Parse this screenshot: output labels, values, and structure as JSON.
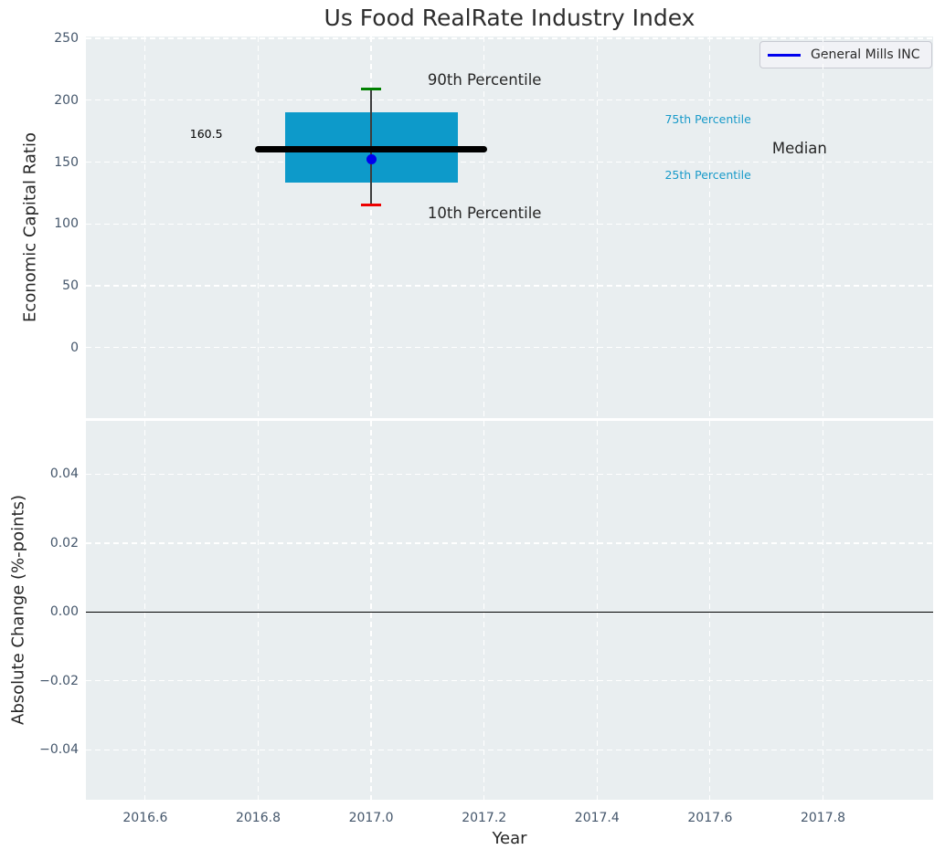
{
  "chart_data": [
    {
      "type": "boxplot",
      "title": "Us Food RealRate Industry Index",
      "ylabel": "Economic Capital Ratio",
      "xlim": [
        2016.495,
        2017.995
      ],
      "ylim": [
        -57,
        251.5
      ],
      "grid": true,
      "yticks": [
        250,
        200,
        150,
        100,
        50,
        0
      ],
      "ytick_labels": [
        "250",
        "200",
        "150",
        "100",
        "50",
        "0"
      ],
      "xticks": [
        2016.6,
        2016.8,
        2017.0,
        2017.2,
        2017.4,
        2017.6,
        2017.8
      ],
      "xtick_labels": [
        "2016.6",
        "2016.8",
        "2017.0",
        "2017.2",
        "2017.4",
        "2017.6",
        "2017.8"
      ],
      "legend": {
        "label": "General Mills INC",
        "line_color": "#0000ee",
        "position": "upper right"
      },
      "box": {
        "x": 2017.0,
        "p90": 209,
        "p75": 190,
        "median": 160.5,
        "p25": 133.5,
        "p10": 115,
        "box_halfwidth_years": 0.153,
        "median_halfwidth_years": 0.206,
        "cap_halfwidth_years": 0.018,
        "colors": {
          "box_fill": "#0d9aca",
          "median_line": "#000000",
          "p90_cap": "#008000",
          "p10_cap": "#ed0000",
          "whisker": "#3d3d3d"
        }
      },
      "company_point": {
        "label": "General Mills INC",
        "x": 2017.0,
        "y": 152,
        "color": "#0000ee"
      },
      "median_value_label": "160.5",
      "annotations": [
        {
          "id": "90th-percentile",
          "text": "90th Percentile",
          "x": 2017.1,
          "y": 216,
          "color": "#262626",
          "size": "large",
          "align": "left"
        },
        {
          "id": "10th-percentile",
          "text": "10th Percentile",
          "x": 2017.1,
          "y": 108,
          "color": "#262626",
          "size": "large",
          "align": "left"
        },
        {
          "id": "75th-percentile",
          "text": "75th Percentile",
          "x": 2017.52,
          "y": 184,
          "color": "#189ac9",
          "size": "small",
          "align": "left"
        },
        {
          "id": "25th-percentile",
          "text": "25th Percentile",
          "x": 2017.52,
          "y": 139,
          "color": "#189ac9",
          "size": "small",
          "align": "left"
        },
        {
          "id": "median",
          "text": "Median",
          "x": 2017.71,
          "y": 160.5,
          "color": "#262626",
          "size": "large",
          "align": "left"
        },
        {
          "id": "median-value",
          "text": "160.5",
          "x": 2016.737,
          "y": 172.5,
          "color": "#000000",
          "size": "small",
          "align": "right"
        }
      ]
    },
    {
      "type": "line",
      "ylabel": "Absolute Change (%-points)",
      "xlabel": "Year",
      "ylim": [
        -0.0545,
        0.0555
      ],
      "grid": true,
      "yticks": [
        0.04,
        0.02,
        0.0,
        -0.02,
        -0.04
      ],
      "ytick_labels": [
        "0.04",
        "0.02",
        "0.00",
        "−0.02",
        "−0.04"
      ],
      "zero_line_y": 0.0
    }
  ],
  "colors": {
    "plot_background": "#e9eef0",
    "gridline": "#ffffff",
    "tick_label": "#44566b",
    "zero_line": "#000000"
  }
}
